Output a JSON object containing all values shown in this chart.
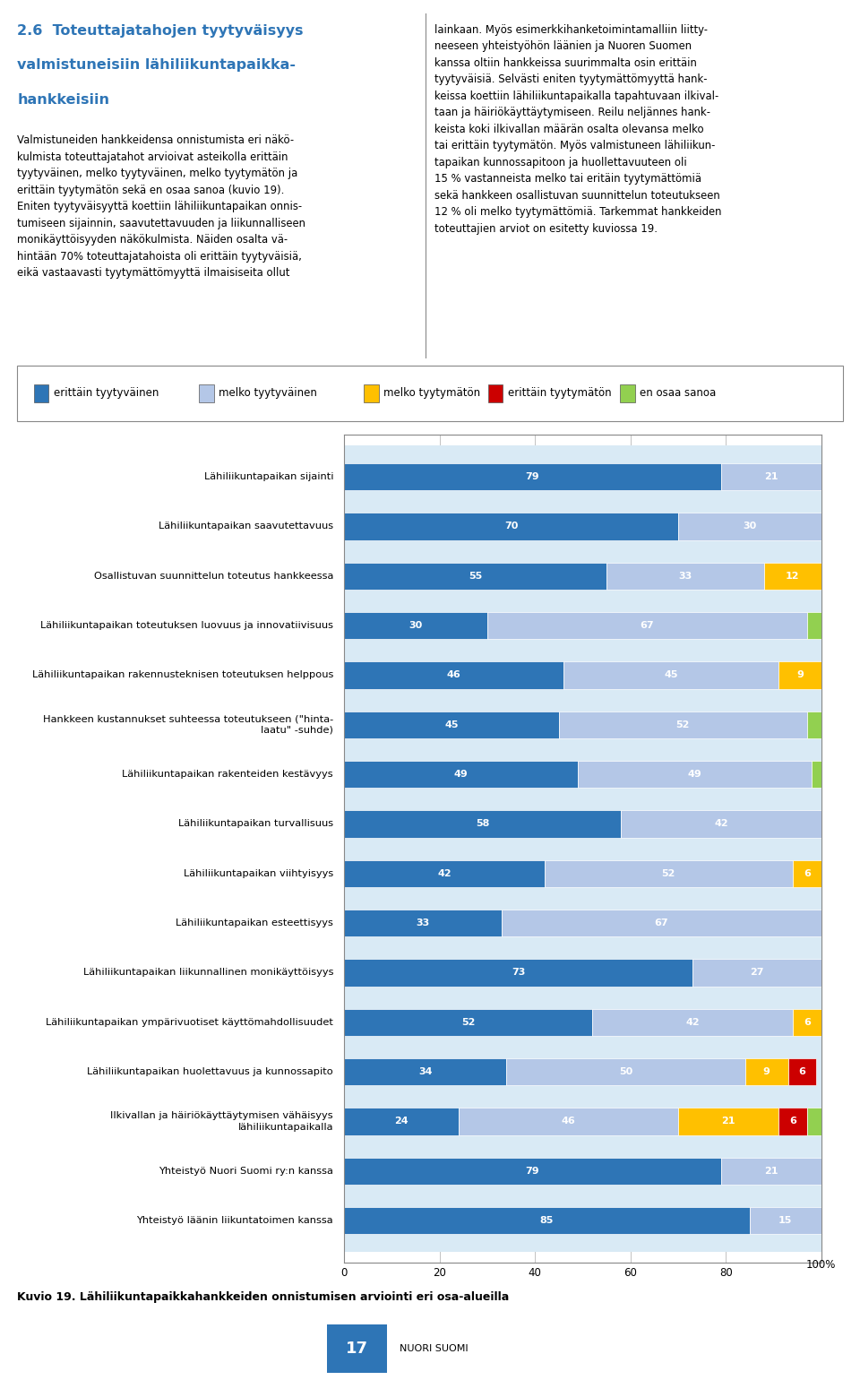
{
  "title_line1": "2.6  Toteuttajatahojen tyytyväisyys",
  "title_line2": "valmistuneisiin lähiliikuntapaikka-",
  "title_line3": "hankkeisiin",
  "body_left": "Valmistuneiden hankkeidensa onnistumista eri näkö-\nkulmista toteuttajatahot arvioivat asteikolla erittäin\ntyytyväinen, melko tyytyväinen, melko tyytymätön ja\nerittäin tyytymätön sekä en osaa sanoa (kuvio 19).\nEniten tyytyväisyyttä koettiin lähiliikuntapaikan onnis-\ntumiseen sijainnin, saavutettavuuden ja liikunnalliseen\nmonikäyttöisyyden näkökulmista. Näiden osalta vä-\nhintään 70% toteuttajatahoista oli erittäin tyytyväisiä,\neikä vastaavasti tyytymättömyyttä ilmaisiseita ollut",
  "body_right": "lainkaan. Myös esimerkkihanketoimintamalliin liitty-\nneeseen yhteistyöhön läänien ja Nuoren Suomen\nkanssa oltiin hankkeissa suurimmalta osin erittäin\ntyytyväisiä. Selvästi eniten tyytymättömyyttä hank-\nkeissa koettiin lähiliikuntapaikalla tapahtuvaan ilkival-\ntaan ja häiriökäyttäytymiseen. Reilu neljännes hank-\nkeista koki ilkivallan määrän osalta olevansa melko\ntai erittäin tyytymätön. Myös valmistuneen lähiliikun-\ntapaikan kunnossapitoon ja huollettavuuteen oli\n15 % vastanneista melko tai eritäin tyytymättömiä\nsekä hankkeen osallistuvan suunnittelun toteutukseen\n12 % oli melko tyytymättömiä. Tarkemmat hankkeiden\ntoteuttajien arviot on esitetty kuviossa 19.",
  "legend_labels": [
    "erittäin tyytyväinen",
    "melko tyytyväinen",
    "melko tyytymätön",
    "erittäin tyytymätön",
    "en osaa sanoa"
  ],
  "legend_colors": [
    "#2E75B6",
    "#B4C7E7",
    "#FFC000",
    "#CC0000",
    "#92D050"
  ],
  "categories": [
    "Lähiliikuntapaikan sijainti",
    "Lähiliikuntapaikan saavutettavuus",
    "Osallistuvan suunnittelun toteutus hankkeessa",
    "Lähiliikuntapaikan toteutuksen luovuus ja innovatiivisuus",
    "Lähiliikuntapaikan rakennusteknisen toteutuksen helppous",
    "Hankkeen kustannukset suhteessa toteutukseen (\"hinta-\nlaatu\" -suhde)",
    "Lähiliikuntapaikan rakenteiden kestävyys",
    "Lähiliikuntapaikan turvallisuus",
    "Lähiliikuntapaikan viihtyisyys",
    "Lähiliikuntapaikan esteettisyys",
    "Lähiliikuntapaikan liikunnallinen monikäyttöisyys",
    "Lähiliikuntapaikan ympärivuotiset käyttömahdollisuudet",
    "Lähiliikuntapaikan huolettavuus ja kunnossapito",
    "Ilkivallan ja häiriökäyttäytymisen vähäisyys\nlähiliikuntapaikalla",
    "Yhteistyö Nuori Suomi ry:n kanssa",
    "Yhteistyö läänin liikuntatoimen kanssa"
  ],
  "data": [
    [
      79,
      21,
      0,
      0,
      0
    ],
    [
      70,
      30,
      0,
      0,
      0
    ],
    [
      55,
      33,
      12,
      0,
      0
    ],
    [
      30,
      67,
      0,
      0,
      3
    ],
    [
      46,
      45,
      9,
      0,
      0
    ],
    [
      45,
      52,
      0,
      0,
      3
    ],
    [
      49,
      49,
      0,
      0,
      3
    ],
    [
      58,
      42,
      0,
      0,
      0
    ],
    [
      42,
      52,
      6,
      0,
      0
    ],
    [
      33,
      67,
      0,
      0,
      0
    ],
    [
      73,
      27,
      0,
      0,
      0
    ],
    [
      52,
      42,
      6,
      0,
      0
    ],
    [
      34,
      50,
      9,
      6,
      0
    ],
    [
      24,
      46,
      21,
      6,
      3
    ],
    [
      79,
      21,
      0,
      0,
      0
    ],
    [
      85,
      15,
      0,
      0,
      0
    ]
  ],
  "colors": [
    "#2E75B6",
    "#B4C7E7",
    "#FFC000",
    "#CC0000",
    "#92D050"
  ],
  "bar_bg_color": "#D9EAF5",
  "caption": "Kuvio 19. Lähiliikuntapaikkahankkeiden onnistumisen arviointi eri osa-alueilla",
  "page_num": "17",
  "page_label": "NUORI SUOMI"
}
